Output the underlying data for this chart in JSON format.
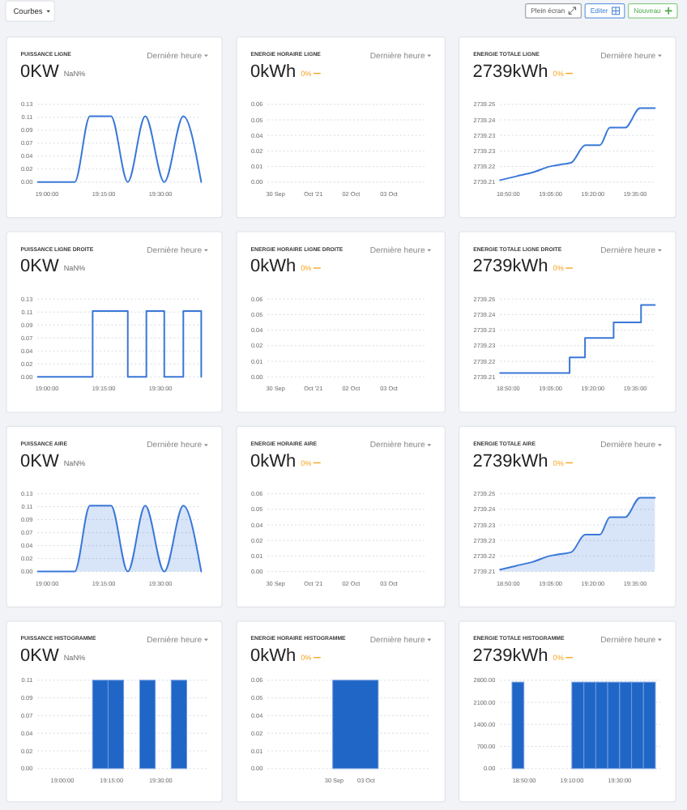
{
  "chart_data": [
    {
      "type": "other",
      "annotations": [
        "Courbes",
        "Plein écran",
        "Editer",
        "Nouveau"
      ]
    },
    {
      "type": "line",
      "title": "PUISSANCE LIGNE",
      "subtitle": "0KW",
      "annotations": [
        "NaN%",
        "Dernière heure"
      ],
      "x": [
        18.959,
        19.122,
        19.189,
        19.282,
        19.356,
        19.433,
        19.517,
        19.601,
        19.68
      ],
      "values": [
        0,
        0,
        0.11,
        0.11,
        0,
        0.11,
        0,
        0.11,
        0
      ],
      "color": "#3a78d8",
      "xlim": [
        18.958,
        19.68
      ],
      "xticks": [
        {
          "value": 19,
          "label": "19:00:00"
        },
        {
          "value": 19.25,
          "label": "19:15:00"
        },
        {
          "value": 19.5,
          "label": "19:30:00"
        }
      ],
      "ylim": [
        0,
        0.13
      ],
      "yticks": [
        {
          "value": 0,
          "label": "0.00"
        },
        {
          "value": 0.0217,
          "label": "0.02"
        },
        {
          "value": 0.0433,
          "label": "0.04"
        },
        {
          "value": 0.065,
          "label": "0.07"
        },
        {
          "value": 0.0867,
          "label": "0.09"
        },
        {
          "value": 0.1083,
          "label": "0.11"
        },
        0.13
      ],
      "grid": "y"
    },
    {
      "type": "line",
      "title": "ENERGIE HORAIRE LIGNE",
      "subtitle": "0kWh",
      "annotations": [
        "0%",
        "Dernière heure"
      ],
      "xlim": [
        "2021-09-29T19:00",
        "2021-10-03T22:30"
      ],
      "xticks": [
        {
          "value": "2021-09-30",
          "label": "30 Sep"
        },
        {
          "value": "2021-10-01",
          "label": "Oct '21"
        },
        {
          "value": "2021-10-02",
          "label": "02 Oct"
        },
        {
          "value": "2021-10-03",
          "label": "03 Oct"
        }
      ],
      "ylim": [
        0,
        0.06
      ],
      "yticks": [
        {
          "value": 0,
          "label": "0.00"
        },
        {
          "value": 0.012,
          "label": "0.01"
        },
        {
          "value": 0.024,
          "label": "0.02"
        },
        {
          "value": 0.036,
          "label": "0.04"
        },
        {
          "value": 0.048,
          "label": "0.05"
        },
        0.06
      ],
      "grid": "y"
    },
    {
      "type": "line",
      "title": "ENERGIE TOTALE LIGNE",
      "subtitle": "2739kWh",
      "annotations": [
        "0%",
        "Dernière heure"
      ],
      "x": [
        18.785,
        18.882,
        18.979,
        19.077,
        19.142,
        19.206,
        19.288,
        19.375,
        19.434,
        19.524,
        19.612,
        19.7
      ],
      "values": [
        2739.211,
        2739.213,
        2739.215,
        2739.218,
        2739.219,
        2739.22,
        2739.229,
        2739.229,
        2739.238,
        2739.238,
        2739.248,
        2739.248
      ],
      "color": "#3a78d8",
      "xlim": [
        18.785,
        19.7
      ],
      "xticks": [
        {
          "value": 18.8333,
          "label": "18:50:00"
        },
        {
          "value": 19.0833,
          "label": "19:05:00"
        },
        {
          "value": 19.3333,
          "label": "19:20:00"
        },
        {
          "value": 19.5833,
          "label": "19:35:00"
        }
      ],
      "ylim": [
        2739.21,
        2739.25
      ],
      "yticks": [
        2739.21,
        {
          "value": 2739.218,
          "label": "2739.22"
        },
        {
          "value": 2739.226,
          "label": "2739.23"
        },
        {
          "value": 2739.234,
          "label": "2739.23"
        },
        {
          "value": 2739.242,
          "label": "2739.24"
        },
        2739.25
      ],
      "grid": "y"
    },
    {
      "type": "step",
      "title": "PUISSANCE LIGNE DROITE",
      "subtitle": "0KW",
      "annotations": [
        "NaN%",
        "Dernière heure"
      ],
      "x": [
        18.959,
        19.201,
        19.356,
        19.438,
        19.517,
        19.601,
        19.68
      ],
      "values": [
        0,
        0.11,
        0,
        0.11,
        0,
        0.11,
        0
      ],
      "color": "#3a78d8",
      "xlim": [
        18.958,
        19.68
      ],
      "xticks": [
        {
          "value": 19,
          "label": "19:00:00"
        },
        {
          "value": 19.25,
          "label": "19:15:00"
        },
        {
          "value": 19.5,
          "label": "19:30:00"
        }
      ],
      "ylim": [
        0,
        0.13
      ],
      "yticks": [
        {
          "value": 0,
          "label": "0.00"
        },
        {
          "value": 0.0217,
          "label": "0.02"
        },
        {
          "value": 0.0433,
          "label": "0.04"
        },
        {
          "value": 0.065,
          "label": "0.07"
        },
        {
          "value": 0.0867,
          "label": "0.09"
        },
        {
          "value": 0.1083,
          "label": "0.11"
        },
        0.13
      ],
      "grid": "y"
    },
    {
      "type": "step",
      "title": "ENERGIE HORAIRE LIGNE DROITE",
      "subtitle": "0kWh",
      "annotations": [
        "0%",
        "Dernière heure"
      ],
      "xlim": [
        "2021-09-29T19:00",
        "2021-10-03T22:30"
      ],
      "xticks": [
        {
          "value": "2021-09-30",
          "label": "30 Sep"
        },
        {
          "value": "2021-10-01",
          "label": "Oct '21"
        },
        {
          "value": "2021-10-02",
          "label": "02 Oct"
        },
        {
          "value": "2021-10-03",
          "label": "03 Oct"
        }
      ],
      "ylim": [
        0,
        0.06
      ],
      "yticks": [
        {
          "value": 0,
          "label": "0.00"
        },
        {
          "value": 0.012,
          "label": "0.01"
        },
        {
          "value": 0.024,
          "label": "0.02"
        },
        {
          "value": 0.036,
          "label": "0.04"
        },
        {
          "value": 0.048,
          "label": "0.05"
        },
        0.06
      ],
      "grid": "y"
    },
    {
      "type": "step",
      "title": "ENERGIE TOTALE LIGNE DROITE",
      "subtitle": "2739kWh",
      "annotations": [
        "0%",
        "Dernière heure"
      ],
      "x": [
        18.785,
        19.196,
        19.287,
        19.456,
        19.618,
        19.7
      ],
      "values": [
        2739.212,
        2739.22,
        2739.23,
        2739.238,
        2739.247,
        2739.247
      ],
      "color": "#3a78d8",
      "xlim": [
        18.785,
        19.7
      ],
      "xticks": [
        {
          "value": 18.8333,
          "label": "18:50:00"
        },
        {
          "value": 19.0833,
          "label": "19:05:00"
        },
        {
          "value": 19.3333,
          "label": "19:20:00"
        },
        {
          "value": 19.5833,
          "label": "19:35:00"
        }
      ],
      "ylim": [
        2739.21,
        2739.25
      ],
      "yticks": [
        2739.21,
        {
          "value": 2739.218,
          "label": "2739.22"
        },
        {
          "value": 2739.226,
          "label": "2739.23"
        },
        {
          "value": 2739.234,
          "label": "2739.23"
        },
        {
          "value": 2739.242,
          "label": "2739.24"
        },
        2739.25
      ],
      "grid": "y"
    },
    {
      "type": "area",
      "title": "PUISSANCE AIRE",
      "subtitle": "0KW",
      "annotations": [
        "NaN%",
        "Dernière heure"
      ],
      "x": [
        18.959,
        19.122,
        19.189,
        19.282,
        19.356,
        19.433,
        19.517,
        19.601,
        19.68
      ],
      "values": [
        0,
        0,
        0.11,
        0.11,
        0,
        0.11,
        0,
        0.11,
        0
      ],
      "color": "#3a78d8",
      "xlim": [
        18.958,
        19.68
      ],
      "xticks": [
        {
          "value": 19,
          "label": "19:00:00"
        },
        {
          "value": 19.25,
          "label": "19:15:00"
        },
        {
          "value": 19.5,
          "label": "19:30:00"
        }
      ],
      "ylim": [
        0,
        0.13
      ],
      "yticks": [
        {
          "value": 0,
          "label": "0.00"
        },
        {
          "value": 0.0217,
          "label": "0.02"
        },
        {
          "value": 0.0433,
          "label": "0.04"
        },
        {
          "value": 0.065,
          "label": "0.07"
        },
        {
          "value": 0.0867,
          "label": "0.09"
        },
        {
          "value": 0.1083,
          "label": "0.11"
        },
        0.13
      ],
      "grid": "y"
    },
    {
      "type": "area",
      "title": "ENERGIE HORAIRE AIRE",
      "subtitle": "0kWh",
      "annotations": [
        "0%",
        "Dernière heure"
      ],
      "xlim": [
        "2021-09-29T19:00",
        "2021-10-03T22:30"
      ],
      "xticks": [
        {
          "value": "2021-09-30",
          "label": "30 Sep"
        },
        {
          "value": "2021-10-01",
          "label": "Oct '21"
        },
        {
          "value": "2021-10-02",
          "label": "02 Oct"
        },
        {
          "value": "2021-10-03",
          "label": "03 Oct"
        }
      ],
      "ylim": [
        0,
        0.06
      ],
      "yticks": [
        {
          "value": 0,
          "label": "0.00"
        },
        {
          "value": 0.012,
          "label": "0.01"
        },
        {
          "value": 0.024,
          "label": "0.02"
        },
        {
          "value": 0.036,
          "label": "0.04"
        },
        {
          "value": 0.048,
          "label": "0.05"
        },
        0.06
      ],
      "grid": "y"
    },
    {
      "type": "area",
      "title": "ENERGIE TOTALE AIRE",
      "subtitle": "2739kWh",
      "annotations": [
        "0%",
        "Dernière heure"
      ],
      "x": [
        18.785,
        18.882,
        18.979,
        19.077,
        19.142,
        19.206,
        19.288,
        19.375,
        19.434,
        19.524,
        19.612,
        19.7
      ],
      "values": [
        2739.211,
        2739.213,
        2739.215,
        2739.218,
        2739.219,
        2739.22,
        2739.229,
        2739.229,
        2739.238,
        2739.238,
        2739.248,
        2739.248
      ],
      "color": "#3a78d8",
      "xlim": [
        18.785,
        19.7
      ],
      "xticks": [
        {
          "value": 18.8333,
          "label": "18:50:00"
        },
        {
          "value": 19.0833,
          "label": "19:05:00"
        },
        {
          "value": 19.3333,
          "label": "19:20:00"
        },
        {
          "value": 19.5833,
          "label": "19:35:00"
        }
      ],
      "ylim": [
        2739.21,
        2739.25
      ],
      "yticks": [
        2739.21,
        {
          "value": 2739.218,
          "label": "2739.22"
        },
        {
          "value": 2739.226,
          "label": "2739.23"
        },
        {
          "value": 2739.234,
          "label": "2739.23"
        },
        {
          "value": 2739.242,
          "label": "2739.24"
        },
        2739.25
      ],
      "grid": "y"
    },
    {
      "type": "bar",
      "title": "PUISSANCE HISTOGRAMME",
      "subtitle": "0KW",
      "annotations": [
        "NaN%",
        "Dernière heure"
      ],
      "x": [
        19.193,
        19.272,
        19.433,
        19.593
      ],
      "values": [
        0.11,
        0.11,
        0.11,
        0.11
      ],
      "color": "#1f66c6",
      "xlim": [
        18.874,
        19.735
      ],
      "xticks": [
        {
          "value": 19,
          "label": "19:00:00"
        },
        {
          "value": 19.25,
          "label": "19:15:00"
        },
        {
          "value": 19.5,
          "label": "19:30:00"
        }
      ],
      "ylim": [
        0,
        0.11
      ],
      "yticks": [
        {
          "value": 0,
          "label": "0.00"
        },
        {
          "value": 0.022,
          "label": "0.02"
        },
        {
          "value": 0.044,
          "label": "0.04"
        },
        {
          "value": 0.066,
          "label": "0.07"
        },
        {
          "value": 0.088,
          "label": "0.09"
        },
        0.11
      ],
      "grid": "y"
    },
    {
      "type": "bar",
      "title": "ENERGIE HORAIRE HISTOGRAMME",
      "subtitle": "0kWh",
      "annotations": [
        "0%",
        "Dernière heure"
      ],
      "x": [
        "2021-10-02"
      ],
      "values": [
        0.06
      ],
      "color": "#1f66c6",
      "xlim": [
        "2021-09-23T18:00",
        "2021-10-09"
      ],
      "xticks": [
        {
          "value": "2021-09-30",
          "label": "30 Sep"
        },
        {
          "value": "2021-10-03",
          "label": "03 Oct"
        }
      ],
      "ylim": [
        0,
        0.06
      ],
      "yticks": [
        {
          "value": 0,
          "label": "0.00"
        },
        {
          "value": 0.012,
          "label": "0.01"
        },
        {
          "value": 0.024,
          "label": "0.02"
        },
        {
          "value": 0.036,
          "label": "0.04"
        },
        {
          "value": 0.048,
          "label": "0.05"
        },
        0.06
      ],
      "grid": "y"
    },
    {
      "type": "bar",
      "title": "ENERGIE TOTALE HISTOGRAMME",
      "subtitle": "2739kWh",
      "annotations": [
        "0%",
        "Dernière heure"
      ],
      "x": [
        18.79,
        19.208,
        19.292,
        19.375,
        19.458,
        19.542,
        19.625,
        19.708
      ],
      "values": [
        2740,
        2740,
        2740,
        2740,
        2740,
        2740,
        2740,
        2740
      ],
      "color": "#1f66c6",
      "xlim": [
        18.665,
        19.786
      ],
      "xticks": [
        {
          "value": 18.8333,
          "label": "18:50:00"
        },
        {
          "value": 19.1667,
          "label": "19:10:00"
        },
        {
          "value": 19.5,
          "label": "19:30:00"
        }
      ],
      "ylim": [
        0,
        2800
      ],
      "yticks": [
        {
          "value": 0,
          "label": "0.00"
        },
        {
          "value": 700,
          "label": "700.00"
        },
        {
          "value": 1400,
          "label": "1400.00"
        },
        {
          "value": 2100,
          "label": "2100.00"
        },
        {
          "value": 2800,
          "label": "2800.00"
        }
      ],
      "grid": "y"
    }
  ]
}
